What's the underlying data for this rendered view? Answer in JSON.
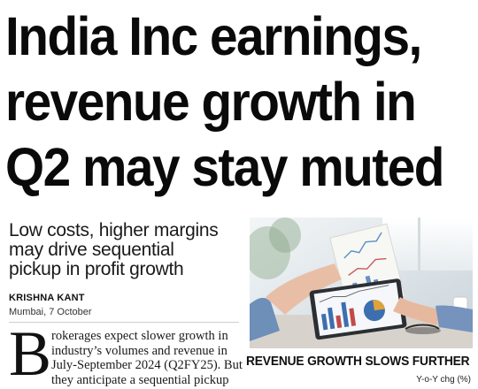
{
  "headline": {
    "lines": [
      "India Inc earnings,",
      "revenue growth in",
      "Q2 may stay muted"
    ]
  },
  "deck": {
    "lines": [
      "Low costs, higher margins",
      "may drive sequential",
      "pickup in profit growth"
    ]
  },
  "byline": {
    "author": "KRISHNA KANT",
    "dateline": "Mumbai, 7 October"
  },
  "body": {
    "dropcap": "B",
    "lines": [
      "rokerages expect slower growth in",
      "industry’s volumes and revenue in",
      "July-September 2024 (Q2FY25). But",
      "they anticipate a sequential pickup"
    ]
  },
  "chart": {
    "title": "REVENUE GROWTH SLOWS FURTHER",
    "subtitle": "Y-o-Y chg (%)"
  }
}
